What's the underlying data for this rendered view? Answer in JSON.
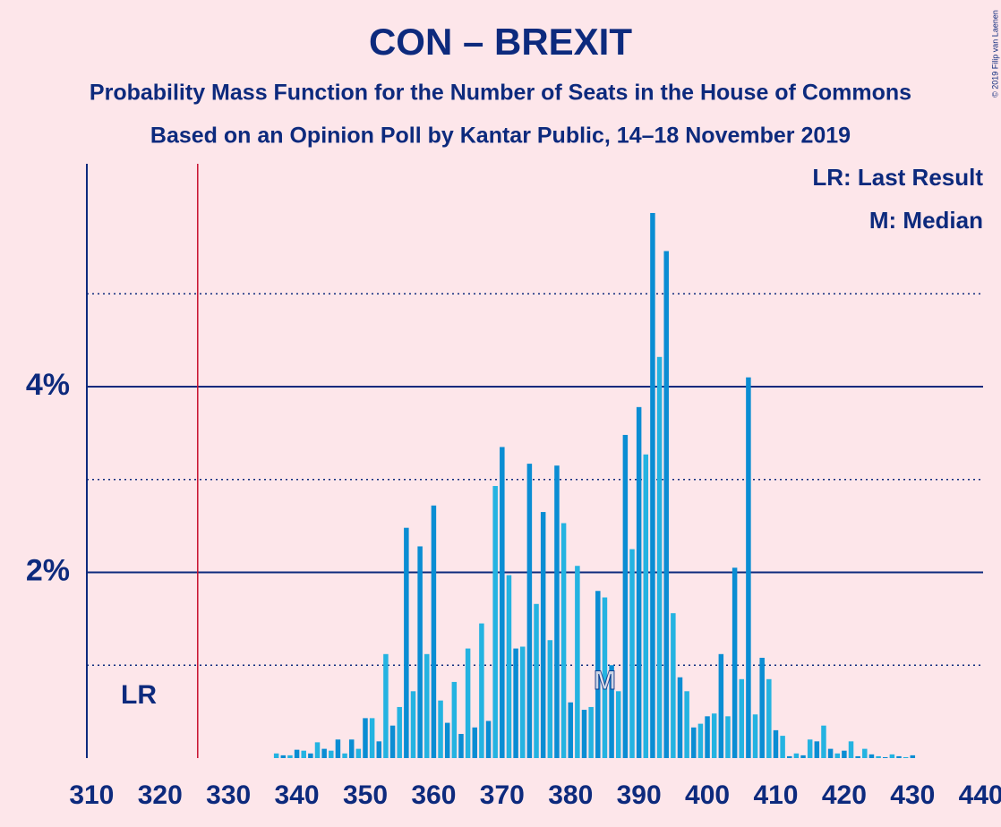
{
  "chart_data": {
    "type": "bar",
    "title": "CON – BREXIT",
    "subtitle": "Probability Mass Function for the Number of Seats in the House of Commons",
    "subtitle2": "Based on an Opinion Poll by Kantar Public, 14–18 November 2019",
    "copyright": "© 2019 Filip van Laenen",
    "legend": [
      "LR: Last Result",
      "M: Median"
    ],
    "last_result_label": "LR",
    "median_label": "M",
    "last_result": 326,
    "median": 385,
    "x": [
      310,
      311,
      312,
      313,
      314,
      315,
      316,
      317,
      318,
      319,
      320,
      321,
      322,
      323,
      324,
      325,
      326,
      327,
      328,
      329,
      330,
      331,
      332,
      333,
      334,
      335,
      336,
      337,
      338,
      339,
      340,
      341,
      342,
      343,
      344,
      345,
      346,
      347,
      348,
      349,
      350,
      351,
      352,
      353,
      354,
      355,
      356,
      357,
      358,
      359,
      360,
      361,
      362,
      363,
      364,
      365,
      366,
      367,
      368,
      369,
      370,
      371,
      372,
      373,
      374,
      375,
      376,
      377,
      378,
      379,
      380,
      381,
      382,
      383,
      384,
      385,
      386,
      387,
      388,
      389,
      390,
      391,
      392,
      393,
      394,
      395,
      396,
      397,
      398,
      399,
      400,
      401,
      402,
      403,
      404,
      405,
      406,
      407,
      408,
      409,
      410,
      411,
      412,
      413,
      414,
      415,
      416,
      417,
      418,
      419,
      420,
      421,
      422,
      423,
      424,
      425,
      426,
      427,
      428,
      429,
      430,
      431,
      432,
      433,
      434,
      435,
      436,
      437,
      438,
      439,
      440
    ],
    "values": [
      0,
      0,
      0,
      0,
      0,
      0,
      0,
      0,
      0,
      0,
      0,
      0,
      0,
      0,
      0,
      0,
      0,
      0,
      0,
      0,
      0,
      0,
      0,
      0,
      0,
      0,
      0,
      0.05,
      0.03,
      0.03,
      0.09,
      0.08,
      0.05,
      0.17,
      0.1,
      0.08,
      0.2,
      0.05,
      0.2,
      0.1,
      0.43,
      0.43,
      0.18,
      1.12,
      0.35,
      0.55,
      2.48,
      0.72,
      2.28,
      1.12,
      2.72,
      0.62,
      0.38,
      0.82,
      0.26,
      1.18,
      0.33,
      1.45,
      0.4,
      2.93,
      3.35,
      1.97,
      1.18,
      1.2,
      3.17,
      1.66,
      2.65,
      1.27,
      3.15,
      2.53,
      0.6,
      2.07,
      0.52,
      0.55,
      1.8,
      1.73,
      1.0,
      0.72,
      3.48,
      2.25,
      3.78,
      3.27,
      5.87,
      4.32,
      5.46,
      1.56,
      0.87,
      0.72,
      0.33,
      0.37,
      0.45,
      0.48,
      1.12,
      0.45,
      2.05,
      0.85,
      4.1,
      0.47,
      1.08,
      0.85,
      0.3,
      0.24,
      0.02,
      0.05,
      0.03,
      0.2,
      0.18,
      0.35,
      0.1,
      0.05,
      0.08,
      0.18,
      0.02,
      0.1,
      0.04,
      0.02,
      0.01,
      0.04,
      0.02,
      0.01,
      0.03,
      0,
      0,
      0,
      0,
      0,
      0,
      0,
      0,
      0,
      0
    ],
    "colors": [
      "#0a8dd3",
      "#24b3e1"
    ],
    "last_result_color": "#c8102e",
    "xlim": [
      309.3,
      440.3
    ],
    "xticks": [
      310,
      320,
      330,
      340,
      350,
      360,
      370,
      380,
      390,
      400,
      410,
      420,
      430,
      440
    ],
    "ylim": [
      0,
      6.4
    ],
    "yticks": [
      {
        "value": 2,
        "label": "2%"
      },
      {
        "value": 4,
        "label": "4%"
      }
    ],
    "yminor": [
      1,
      3,
      5
    ]
  }
}
